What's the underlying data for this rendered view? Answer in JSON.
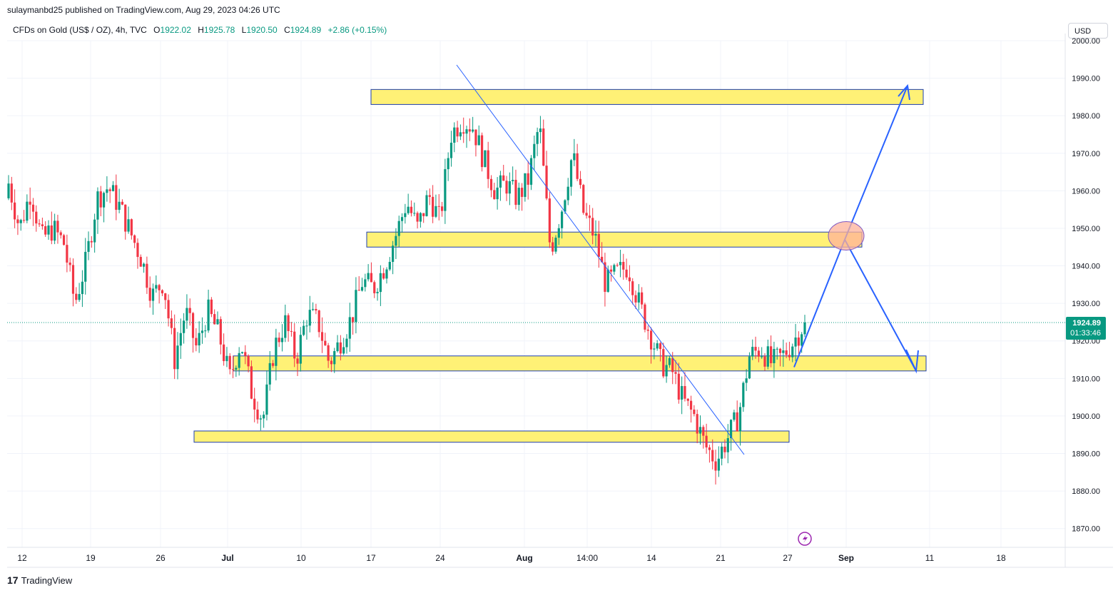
{
  "header": {
    "credit": "sulaymanbd25 published on TradingView.com, Aug 29, 2023 04:26 UTC"
  },
  "legend": {
    "symbol": "CFDs on Gold (US$ / OZ), 4h, TVC",
    "open_label": "O",
    "open": "1922.02",
    "high_label": "H",
    "high": "1925.78",
    "low_label": "L",
    "low": "1920.50",
    "close_label": "C",
    "close": "1924.89",
    "change": "+2.86 (+0.15%)"
  },
  "currency": "USD",
  "price_tag": {
    "price": "1924.89",
    "countdown": "01:33:46",
    "color": "#089981"
  },
  "footer": {
    "brand": "TradingView",
    "logo_icon": "tradingview-logo-icon"
  },
  "colors": {
    "up": "#089981",
    "down": "#f23645",
    "zone_fill": "#fff176",
    "zone_border": "#1e3fb0",
    "trendline": "#2962ff",
    "projection": "#2962ff",
    "highlight_fill": "#ffb199",
    "highlight_border": "#7e57c2"
  },
  "chart_data": {
    "type": "candlestick",
    "timeframe": "4h",
    "ylim": [
      1860,
      2000
    ],
    "y_ticks": [
      "2000.00",
      "1990.00",
      "1980.00",
      "1970.00",
      "1960.00",
      "1950.00",
      "1940.00",
      "1930.00",
      "1920.00",
      "1910.00",
      "1900.00",
      "1890.00",
      "1880.00",
      "1870.00"
    ],
    "x_ticks": [
      "12",
      "19",
      "26",
      "Jul",
      "10",
      "17",
      "24",
      "Aug",
      "14:00",
      "14",
      "21",
      "27",
      "Sep",
      "11",
      "18"
    ],
    "bold_x_ticks": [
      "Jul",
      "Aug",
      "Sep"
    ],
    "candles_approx": [
      [
        1958,
        1967,
        1949,
        1962
      ],
      [
        1962,
        1965,
        1946,
        1950
      ],
      [
        1950,
        1966,
        1940,
        1960
      ],
      [
        1960,
        1964,
        1944,
        1947
      ],
      [
        1947,
        1954,
        1937,
        1950
      ],
      [
        1950,
        1959,
        1942,
        1946
      ],
      [
        1946,
        1952,
        1920,
        1930
      ],
      [
        1930,
        1944,
        1925,
        1941
      ],
      [
        1941,
        1962,
        1938,
        1958
      ],
      [
        1958,
        1966,
        1952,
        1961
      ],
      [
        1961,
        1964,
        1950,
        1956
      ],
      [
        1956,
        1960,
        1944,
        1949
      ],
      [
        1949,
        1953,
        1937,
        1942
      ],
      [
        1942,
        1946,
        1928,
        1932
      ],
      [
        1932,
        1940,
        1924,
        1936
      ],
      [
        1936,
        1940,
        1912,
        1915
      ],
      [
        1915,
        1932,
        1910,
        1928
      ],
      [
        1928,
        1930,
        1912,
        1918
      ],
      [
        1918,
        1934,
        1915,
        1928
      ],
      [
        1928,
        1932,
        1916,
        1922
      ],
      [
        1922,
        1926,
        1904,
        1910
      ],
      [
        1910,
        1924,
        1906,
        1920
      ],
      [
        1920,
        1924,
        1901,
        1906
      ],
      [
        1906,
        1912,
        1893,
        1899
      ],
      [
        1899,
        1920,
        1896,
        1918
      ],
      [
        1918,
        1930,
        1914,
        1925
      ],
      [
        1925,
        1930,
        1912,
        1915
      ],
      [
        1915,
        1930,
        1904,
        1927
      ],
      [
        1927,
        1933,
        1921,
        1925
      ],
      [
        1925,
        1929,
        1910,
        1914
      ],
      [
        1914,
        1924,
        1901,
        1920
      ],
      [
        1920,
        1933,
        1914,
        1926
      ],
      [
        1926,
        1940,
        1921,
        1936
      ],
      [
        1936,
        1944,
        1928,
        1934
      ],
      [
        1934,
        1942,
        1924,
        1940
      ],
      [
        1940,
        1950,
        1936,
        1948
      ],
      [
        1948,
        1960,
        1944,
        1957
      ],
      [
        1957,
        1962,
        1945,
        1950
      ],
      [
        1950,
        1963,
        1948,
        1959
      ],
      [
        1959,
        1963,
        1946,
        1952
      ],
      [
        1952,
        1978,
        1950,
        1975
      ],
      [
        1975,
        1984,
        1968,
        1979
      ],
      [
        1979,
        1987,
        1972,
        1977
      ],
      [
        1977,
        1980,
        1962,
        1968
      ],
      [
        1968,
        1972,
        1955,
        1960
      ],
      [
        1960,
        1966,
        1950,
        1962
      ],
      [
        1962,
        1965,
        1952,
        1958
      ],
      [
        1958,
        1966,
        1950,
        1963
      ],
      [
        1963,
        1982,
        1960,
        1978
      ],
      [
        1978,
        1980,
        1942,
        1944
      ],
      [
        1944,
        1962,
        1942,
        1955
      ],
      [
        1955,
        1972,
        1950,
        1970
      ],
      [
        1970,
        1972,
        1950,
        1954
      ],
      [
        1954,
        1958,
        1942,
        1948
      ],
      [
        1948,
        1952,
        1930,
        1935
      ],
      [
        1935,
        1940,
        1925,
        1938
      ],
      [
        1938,
        1946,
        1930,
        1940
      ],
      [
        1940,
        1944,
        1926,
        1930
      ],
      [
        1930,
        1934,
        1918,
        1922
      ],
      [
        1922,
        1930,
        1911,
        1914
      ],
      [
        1914,
        1920,
        1906,
        1912
      ],
      [
        1912,
        1916,
        1900,
        1904
      ],
      [
        1904,
        1910,
        1895,
        1900
      ],
      [
        1900,
        1904,
        1886,
        1892
      ],
      [
        1892,
        1898,
        1884,
        1888
      ],
      [
        1888,
        1896,
        1885,
        1894
      ],
      [
        1894,
        1904,
        1890,
        1900
      ],
      [
        1900,
        1918,
        1898,
        1916
      ],
      [
        1916,
        1922,
        1908,
        1918
      ],
      [
        1918,
        1922,
        1904,
        1914
      ],
      [
        1914,
        1920,
        1910,
        1916
      ],
      [
        1916,
        1921,
        1912,
        1920
      ],
      [
        1920,
        1925,
        1918,
        1924.89
      ]
    ]
  },
  "annotations": {
    "zones": [
      {
        "price_top": 1987,
        "price_bottom": 1983
      },
      {
        "price_top": 1949,
        "price_bottom": 1945
      },
      {
        "price_top": 1916,
        "price_bottom": 1912
      },
      {
        "price_top": 1896,
        "price_bottom": 1893
      }
    ],
    "trendline": {
      "from": {
        "x_label": "24",
        "price": 1994
      },
      "to": {
        "x_label": "21",
        "price": 1886
      }
    },
    "projection_path": [
      1913,
      1947,
      1988,
      1947,
      1912
    ]
  }
}
